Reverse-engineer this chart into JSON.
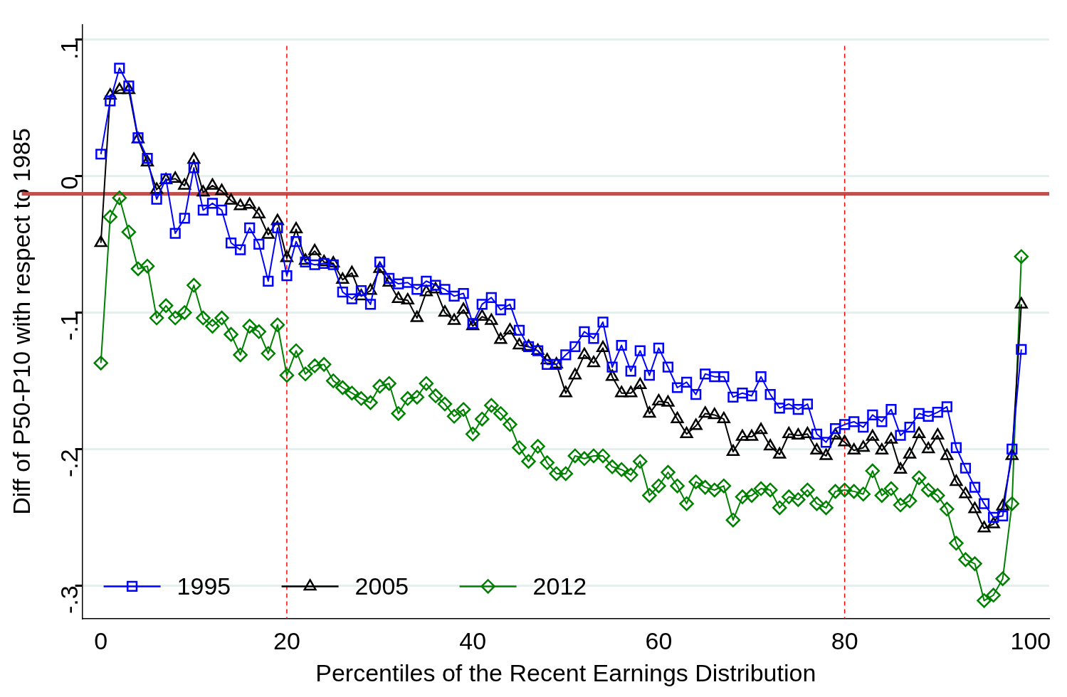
{
  "chart_data": {
    "type": "line",
    "xlabel": "Percentiles of the Recent Earnings Distribution",
    "ylabel": "Diff of P50-P10 with respect to 1985",
    "x": [
      0,
      1,
      2,
      3,
      4,
      5,
      6,
      7,
      8,
      9,
      10,
      11,
      12,
      13,
      14,
      15,
      16,
      17,
      18,
      19,
      20,
      21,
      22,
      23,
      24,
      25,
      26,
      27,
      28,
      29,
      30,
      31,
      32,
      33,
      34,
      35,
      36,
      37,
      38,
      39,
      40,
      41,
      42,
      43,
      44,
      45,
      46,
      47,
      48,
      49,
      50,
      51,
      52,
      53,
      54,
      55,
      56,
      57,
      58,
      59,
      60,
      61,
      62,
      63,
      64,
      65,
      66,
      67,
      68,
      69,
      70,
      71,
      72,
      73,
      74,
      75,
      76,
      77,
      78,
      79,
      80,
      81,
      82,
      83,
      84,
      85,
      86,
      87,
      88,
      89,
      90,
      91,
      92,
      93,
      94,
      95,
      96,
      97,
      98,
      99
    ],
    "xlim": [
      -2,
      102
    ],
    "xticks": [
      0,
      20,
      40,
      60,
      80,
      100
    ],
    "ylim": [
      -0.324,
      0.111
    ],
    "yticks": [
      {
        "value": 0.1,
        "label": ".1"
      },
      0,
      {
        "value": -0.1,
        "label": "-.1"
      },
      {
        "value": -0.2,
        "label": "-.2"
      },
      {
        "value": -0.3,
        "label": "-.3"
      }
    ],
    "grid": "y",
    "legend": "bottom left",
    "series": [
      {
        "name": "1995",
        "color": "#0000ff",
        "marker": "square",
        "values": [
          0.016,
          0.055,
          0.079,
          0.066,
          0.028,
          0.013,
          -0.017,
          -0.002,
          -0.042,
          -0.031,
          0.006,
          -0.025,
          -0.02,
          -0.025,
          -0.049,
          -0.054,
          -0.038,
          -0.05,
          -0.077,
          -0.038,
          -0.073,
          -0.048,
          -0.063,
          -0.065,
          -0.064,
          -0.065,
          -0.085,
          -0.09,
          -0.084,
          -0.094,
          -0.063,
          -0.075,
          -0.079,
          -0.078,
          -0.083,
          -0.077,
          -0.08,
          -0.083,
          -0.088,
          -0.086,
          -0.108,
          -0.094,
          -0.089,
          -0.098,
          -0.094,
          -0.113,
          -0.125,
          -0.128,
          -0.138,
          -0.138,
          -0.131,
          -0.125,
          -0.114,
          -0.119,
          -0.107,
          -0.14,
          -0.124,
          -0.143,
          -0.128,
          -0.146,
          -0.126,
          -0.14,
          -0.155,
          -0.151,
          -0.16,
          -0.145,
          -0.147,
          -0.147,
          -0.162,
          -0.159,
          -0.161,
          -0.147,
          -0.16,
          -0.17,
          -0.167,
          -0.171,
          -0.167,
          -0.189,
          -0.195,
          -0.185,
          -0.182,
          -0.18,
          -0.184,
          -0.175,
          -0.18,
          -0.171,
          -0.19,
          -0.184,
          -0.174,
          -0.176,
          -0.173,
          -0.169,
          -0.199,
          -0.214,
          -0.228,
          -0.24,
          -0.25,
          -0.249,
          -0.2,
          -0.127
        ]
      },
      {
        "name": "2005",
        "color": "#000000",
        "marker": "triangle",
        "values": [
          -0.049,
          0.059,
          0.063,
          0.063,
          0.027,
          0.01,
          -0.01,
          -0.003,
          -0.002,
          -0.007,
          0.012,
          -0.012,
          -0.007,
          -0.011,
          -0.018,
          -0.022,
          -0.021,
          -0.028,
          -0.043,
          -0.033,
          -0.06,
          -0.039,
          -0.062,
          -0.055,
          -0.063,
          -0.064,
          -0.076,
          -0.071,
          -0.088,
          -0.084,
          -0.068,
          -0.078,
          -0.09,
          -0.091,
          -0.104,
          -0.085,
          -0.083,
          -0.1,
          -0.106,
          -0.098,
          -0.11,
          -0.103,
          -0.106,
          -0.12,
          -0.113,
          -0.124,
          -0.125,
          -0.128,
          -0.135,
          -0.138,
          -0.159,
          -0.146,
          -0.131,
          -0.137,
          -0.126,
          -0.147,
          -0.159,
          -0.159,
          -0.153,
          -0.174,
          -0.165,
          -0.166,
          -0.178,
          -0.189,
          -0.183,
          -0.174,
          -0.175,
          -0.178,
          -0.202,
          -0.191,
          -0.191,
          -0.186,
          -0.198,
          -0.204,
          -0.189,
          -0.19,
          -0.189,
          -0.201,
          -0.205,
          -0.19,
          -0.195,
          -0.201,
          -0.199,
          -0.191,
          -0.201,
          -0.193,
          -0.215,
          -0.204,
          -0.189,
          -0.2,
          -0.19,
          -0.205,
          -0.224,
          -0.233,
          -0.244,
          -0.258,
          -0.255,
          -0.242,
          -0.205,
          -0.094
        ]
      },
      {
        "name": "2012",
        "color": "#008000",
        "marker": "diamond",
        "values": [
          -0.137,
          -0.03,
          -0.016,
          -0.041,
          -0.068,
          -0.066,
          -0.104,
          -0.095,
          -0.104,
          -0.1,
          -0.08,
          -0.104,
          -0.11,
          -0.104,
          -0.116,
          -0.131,
          -0.11,
          -0.114,
          -0.13,
          -0.109,
          -0.146,
          -0.128,
          -0.145,
          -0.139,
          -0.138,
          -0.15,
          -0.155,
          -0.159,
          -0.163,
          -0.166,
          -0.154,
          -0.152,
          -0.174,
          -0.163,
          -0.162,
          -0.152,
          -0.161,
          -0.167,
          -0.176,
          -0.171,
          -0.189,
          -0.178,
          -0.168,
          -0.174,
          -0.182,
          -0.199,
          -0.209,
          -0.198,
          -0.21,
          -0.218,
          -0.218,
          -0.205,
          -0.207,
          -0.205,
          -0.205,
          -0.213,
          -0.215,
          -0.219,
          -0.209,
          -0.234,
          -0.227,
          -0.217,
          -0.227,
          -0.24,
          -0.224,
          -0.228,
          -0.23,
          -0.227,
          -0.252,
          -0.235,
          -0.234,
          -0.229,
          -0.23,
          -0.243,
          -0.235,
          -0.237,
          -0.23,
          -0.24,
          -0.243,
          -0.231,
          -0.23,
          -0.231,
          -0.233,
          -0.216,
          -0.234,
          -0.229,
          -0.241,
          -0.238,
          -0.221,
          -0.23,
          -0.234,
          -0.244,
          -0.269,
          -0.281,
          -0.284,
          -0.311,
          -0.307,
          -0.295,
          -0.24,
          -0.059
        ]
      }
    ],
    "ref_lines": [
      {
        "axis": "y",
        "value": -0.013,
        "color": "#c0504d",
        "line_style": "solid"
      },
      {
        "axis": "x",
        "value": 20,
        "color": "#ff0000",
        "line_style": "dashed"
      },
      {
        "axis": "x",
        "value": 80,
        "color": "#ff0000",
        "line_style": "dashed"
      }
    ]
  }
}
